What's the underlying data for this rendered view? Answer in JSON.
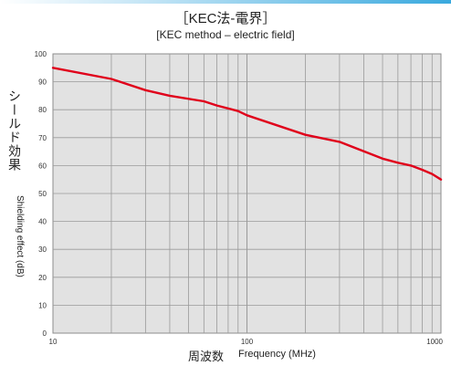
{
  "chart_data": {
    "type": "line",
    "title": "［KEC法-電界］",
    "subtitle": "[KEC method – electric field]",
    "xlabel_ja": "周波数",
    "xlabel_en": "Frequency (MHz)",
    "ylabel_ja": "シールド効果",
    "ylabel_en": "Shielding effect (dB)",
    "x_scale": "log",
    "xlim": [
      10,
      1000
    ],
    "ylim": [
      0,
      100
    ],
    "x_ticks": [
      "10",
      "100",
      "1000"
    ],
    "y_ticks": [
      "0",
      "10",
      "20",
      "30",
      "40",
      "50",
      "60",
      "70",
      "80",
      "90",
      "100"
    ],
    "grid": true,
    "series": [
      {
        "color": "#e0001b",
        "x": [
          10,
          20,
          30,
          40,
          60,
          70,
          90,
          100,
          200,
          300,
          500,
          600,
          700,
          800,
          900,
          1000
        ],
        "y": [
          95,
          91,
          87,
          85,
          83,
          81.5,
          79.5,
          78,
          71,
          68.5,
          62.5,
          61,
          60,
          58.5,
          57,
          55
        ]
      }
    ]
  }
}
